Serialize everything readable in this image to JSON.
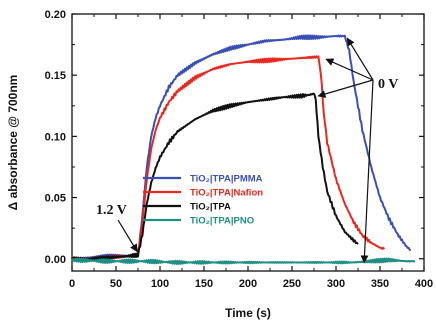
{
  "chart_data": {
    "type": "line",
    "title": "",
    "xlabel": "Time (s)",
    "ylabel": "Δ absorbance @ 700nm",
    "xlim": [
      0,
      400
    ],
    "ylim": [
      -0.01,
      0.2
    ],
    "x_ticks": [
      "0",
      "50",
      "100",
      "150",
      "200",
      "250",
      "300",
      "350",
      "400"
    ],
    "y_ticks": [
      "0.00",
      "0.05",
      "0.10",
      "0.15",
      "0.20"
    ],
    "grid": false,
    "legend_position": "center-left",
    "series": [
      {
        "name": "TiO₂|TPA|PMMA",
        "color": "#3a4fb5",
        "x": [
          0,
          20,
          40,
          60,
          75,
          80,
          85,
          90,
          95,
          100,
          110,
          120,
          140,
          160,
          180,
          200,
          220,
          240,
          260,
          280,
          300,
          310,
          315,
          320,
          330,
          340,
          350,
          360,
          370,
          380,
          385
        ],
        "y": [
          0.0,
          0.001,
          0.002,
          0.002,
          0.003,
          0.035,
          0.075,
          0.1,
          0.115,
          0.125,
          0.14,
          0.15,
          0.16,
          0.167,
          0.172,
          0.175,
          0.178,
          0.179,
          0.181,
          0.181,
          0.182,
          0.182,
          0.17,
          0.145,
          0.105,
          0.075,
          0.05,
          0.033,
          0.02,
          0.01,
          0.007
        ]
      },
      {
        "name": "TiO₂|TPA|Nafion",
        "color": "#e8271f",
        "x": [
          0,
          20,
          40,
          60,
          75,
          80,
          85,
          90,
          95,
          100,
          110,
          120,
          140,
          160,
          180,
          200,
          220,
          240,
          260,
          280,
          283,
          286,
          290,
          300,
          310,
          320,
          330,
          340,
          350,
          355
        ],
        "y": [
          0.0,
          0.0,
          0.001,
          0.002,
          0.003,
          0.03,
          0.065,
          0.09,
          0.105,
          0.115,
          0.128,
          0.137,
          0.148,
          0.155,
          0.159,
          0.161,
          0.162,
          0.163,
          0.164,
          0.165,
          0.15,
          0.12,
          0.095,
          0.065,
          0.045,
          0.03,
          0.019,
          0.013,
          0.009,
          0.008
        ]
      },
      {
        "name": "TiO₂|TPA",
        "color": "#111111",
        "x": [
          0,
          20,
          40,
          60,
          75,
          80,
          85,
          90,
          95,
          100,
          110,
          120,
          140,
          160,
          180,
          200,
          220,
          240,
          260,
          270,
          275,
          277,
          280,
          285,
          290,
          300,
          310,
          320,
          325
        ],
        "y": [
          0.0,
          0.0,
          0.001,
          0.002,
          0.003,
          0.02,
          0.045,
          0.062,
          0.074,
          0.083,
          0.095,
          0.104,
          0.114,
          0.121,
          0.125,
          0.128,
          0.13,
          0.132,
          0.133,
          0.134,
          0.135,
          0.13,
          0.1,
          0.075,
          0.055,
          0.035,
          0.022,
          0.015,
          0.012
        ]
      },
      {
        "name": "TiO₂|TPA|PNO",
        "color": "#1f8f86",
        "x": [
          0,
          40,
          80,
          120,
          160,
          200,
          240,
          280,
          320,
          340,
          360,
          380,
          390
        ],
        "y": [
          -0.001,
          -0.002,
          -0.002,
          -0.003,
          -0.003,
          -0.003,
          -0.003,
          -0.003,
          -0.003,
          -0.002,
          -0.001,
          -0.002,
          -0.002
        ]
      }
    ],
    "annotations": [
      {
        "text": "1.2 V",
        "x": 80,
        "y": 0.003
      },
      {
        "text": "0 V",
        "x": 280,
        "y": 0.0
      }
    ]
  }
}
